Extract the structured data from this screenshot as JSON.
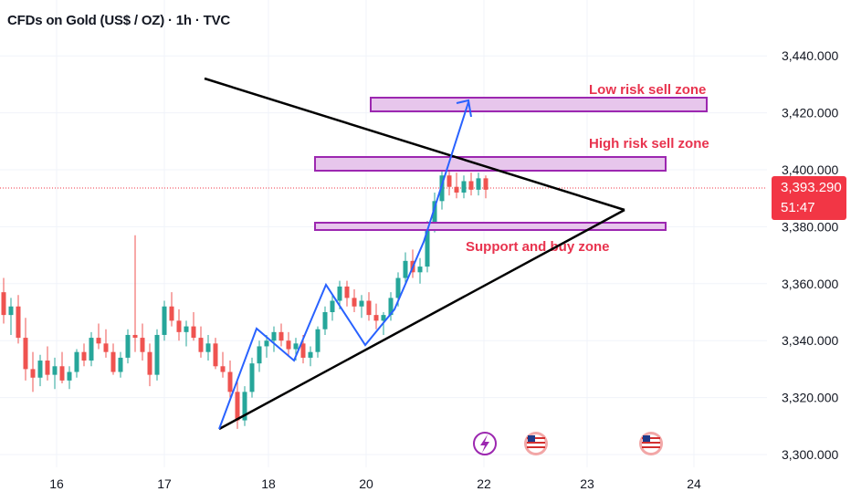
{
  "title": "CFDs on Gold (US$ / OZ) · 1h · TVC",
  "current_price": "3,393.290",
  "countdown": "51:47",
  "colors": {
    "up": "#26a69a",
    "down": "#ef5350",
    "zone_fill": "#e7c6ec",
    "zone_stroke": "#9c27b0",
    "arrow": "#2962ff",
    "label": "#e8334e",
    "price_tag": "#f23645"
  },
  "event_icons": [
    "lightning-icon",
    "us-flag-icon",
    "us-flag-icon"
  ],
  "chart_data": {
    "type": "candlestick",
    "y_axis": {
      "ticks": [
        "3,440.000",
        "3,420.000",
        "3,400.000",
        "3,380.000",
        "3,360.000",
        "3,340.000",
        "3,320.000",
        "3,300.000"
      ],
      "ylim": [
        3296,
        3452
      ]
    },
    "x_axis": {
      "ticks": [
        "16",
        "17",
        "18",
        "20",
        "22",
        "23",
        "24"
      ]
    },
    "last_price": 3393.29,
    "candles": [
      [
        3357,
        3362,
        3346,
        3349
      ],
      [
        3349,
        3355,
        3342,
        3352
      ],
      [
        3352,
        3356,
        3339,
        3341
      ],
      [
        3341,
        3348,
        3326,
        3330
      ],
      [
        3330,
        3336,
        3322,
        3327
      ],
      [
        3327,
        3335,
        3324,
        3333
      ],
      [
        3333,
        3338,
        3326,
        3328
      ],
      [
        3328,
        3334,
        3323,
        3331
      ],
      [
        3331,
        3336,
        3325,
        3326
      ],
      [
        3326,
        3331,
        3323,
        3329
      ],
      [
        3329,
        3337,
        3327,
        3336
      ],
      [
        3336,
        3339,
        3331,
        3333
      ],
      [
        3333,
        3343,
        3331,
        3341
      ],
      [
        3341,
        3346,
        3337,
        3339
      ],
      [
        3339,
        3344,
        3334,
        3336
      ],
      [
        3336,
        3339,
        3328,
        3329
      ],
      [
        3329,
        3336,
        3327,
        3334
      ],
      [
        3334,
        3344,
        3332,
        3342
      ],
      [
        3342,
        3377,
        3336,
        3341
      ],
      [
        3341,
        3346,
        3333,
        3336
      ],
      [
        3336,
        3339,
        3324,
        3328
      ],
      [
        3328,
        3344,
        3326,
        3342
      ],
      [
        3342,
        3354,
        3340,
        3352
      ],
      [
        3352,
        3357,
        3345,
        3347
      ],
      [
        3347,
        3351,
        3340,
        3343
      ],
      [
        3343,
        3347,
        3338,
        3345
      ],
      [
        3345,
        3350,
        3340,
        3341
      ],
      [
        3341,
        3345,
        3334,
        3336
      ],
      [
        3336,
        3342,
        3333,
        3339
      ],
      [
        3339,
        3341,
        3330,
        3331
      ],
      [
        3331,
        3336,
        3327,
        3329
      ],
      [
        3329,
        3333,
        3320,
        3322
      ],
      [
        3322,
        3326,
        3309,
        3312
      ],
      [
        3312,
        3324,
        3310,
        3322
      ],
      [
        3322,
        3334,
        3320,
        3332
      ],
      [
        3332,
        3340,
        3329,
        3338
      ],
      [
        3338,
        3342,
        3334,
        3340
      ],
      [
        3340,
        3345,
        3336,
        3343
      ],
      [
        3343,
        3346,
        3338,
        3340
      ],
      [
        3340,
        3343,
        3335,
        3337
      ],
      [
        3337,
        3341,
        3333,
        3339
      ],
      [
        3339,
        3342,
        3332,
        3334
      ],
      [
        3334,
        3338,
        3331,
        3336
      ],
      [
        3336,
        3345,
        3334,
        3344
      ],
      [
        3344,
        3352,
        3342,
        3350
      ],
      [
        3350,
        3356,
        3347,
        3354
      ],
      [
        3354,
        3361,
        3351,
        3359
      ],
      [
        3359,
        3361,
        3352,
        3355
      ],
      [
        3355,
        3358,
        3350,
        3352
      ],
      [
        3352,
        3356,
        3348,
        3354
      ],
      [
        3354,
        3357,
        3347,
        3349
      ],
      [
        3349,
        3353,
        3344,
        3347
      ],
      [
        3347,
        3350,
        3342,
        3349
      ],
      [
        3349,
        3357,
        3347,
        3355
      ],
      [
        3355,
        3364,
        3352,
        3362
      ],
      [
        3362,
        3371,
        3360,
        3368
      ],
      [
        3368,
        3372,
        3362,
        3364
      ],
      [
        3364,
        3369,
        3360,
        3366
      ],
      [
        3366,
        3382,
        3364,
        3380
      ],
      [
        3380,
        3392,
        3378,
        3389
      ],
      [
        3389,
        3401,
        3386,
        3398
      ],
      [
        3398,
        3401,
        3391,
        3394
      ],
      [
        3394,
        3399,
        3390,
        3392
      ],
      [
        3392,
        3398,
        3390,
        3396
      ],
      [
        3396,
        3399,
        3391,
        3393
      ],
      [
        3393,
        3399,
        3391,
        3397
      ],
      [
        3397,
        3398,
        3390,
        3393
      ]
    ],
    "zones": [
      {
        "label": "Low risk sell zone",
        "y_low": 3420,
        "y_high": 3425
      },
      {
        "label": "High risk sell zone",
        "y_low": 3399,
        "y_high": 3404
      },
      {
        "label": "Support and buy zone",
        "y_low": 3378,
        "y_high": 3381
      }
    ]
  }
}
